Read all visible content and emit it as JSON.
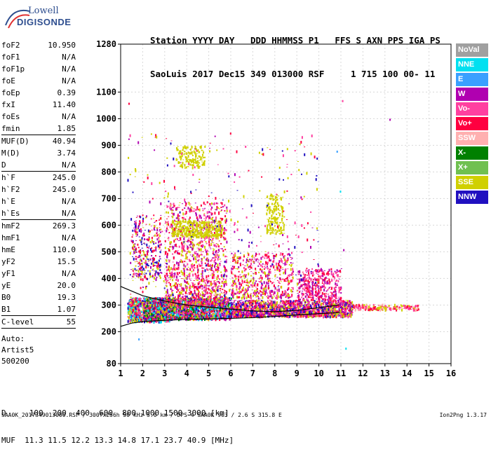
{
  "logo": {
    "line1": "Lowell",
    "line2": "DIGISONDE"
  },
  "header": {
    "line1": "Station YYYY DAY   DDD HHMMSS P1   FFS S AXN PPS IGA PS",
    "line2": "SaoLuis 2017 Dec15 349 013000 RSF     1 715 100 00- 11"
  },
  "params": [
    {
      "k": "foF2",
      "v": "10.950"
    },
    {
      "k": "foF1",
      "v": "N/A"
    },
    {
      "k": "foF1p",
      "v": "N/A"
    },
    {
      "k": "foE",
      "v": "N/A"
    },
    {
      "k": "foEp",
      "v": "0.39"
    },
    {
      "k": "fxI",
      "v": "11.40"
    },
    {
      "k": "foEs",
      "v": "N/A"
    },
    {
      "k": "fmin",
      "v": "1.85"
    },
    {
      "sep": true
    },
    {
      "k": "MUF(D)",
      "v": "40.94"
    },
    {
      "k": "M(D)",
      "v": "3.74"
    },
    {
      "k": "D",
      "v": "N/A"
    },
    {
      "sep": true
    },
    {
      "k": "h`F",
      "v": "245.0"
    },
    {
      "k": "h`F2",
      "v": "245.0"
    },
    {
      "k": "h`E",
      "v": "N/A"
    },
    {
      "k": "h`Es",
      "v": "N/A"
    },
    {
      "sep": true
    },
    {
      "k": "hmF2",
      "v": "269.3"
    },
    {
      "k": "hmF1",
      "v": "N/A"
    },
    {
      "k": "hmE",
      "v": "110.0"
    },
    {
      "k": "yF2",
      "v": "15.5"
    },
    {
      "k": "yF1",
      "v": "N/A"
    },
    {
      "k": "yE",
      "v": "20.0"
    },
    {
      "k": "B0",
      "v": "19.3"
    },
    {
      "k": "B1",
      "v": "1.07"
    },
    {
      "sep": true
    },
    {
      "k": "C-level",
      "v": "55"
    },
    {
      "sep": true
    }
  ],
  "auto": {
    "line1": "Auto:",
    "line2": "Artist5",
    "line3": "500200"
  },
  "footer": {
    "line1": "D     100  200  400  600  800 1000 1500 3000 [km]",
    "line2": "MUF  11.3 11.5 12.2 13.3 14.8 17.1 23.7 40.9 [MHz]",
    "line3": "SAA0K_2017349013000.RSF / 300fx256h 50 kHz 5.0 km / DPS-4 SAA0K 903 / 2.6 S 315.8 E",
    "version": "Ion2Png 1.3.17"
  },
  "legend": [
    {
      "label": "NoVal",
      "color": "#a0a0a0"
    },
    {
      "label": "NNE",
      "color": "#00e0f0"
    },
    {
      "label": "E",
      "color": "#3aa0ff"
    },
    {
      "label": "W",
      "color": "#b000b0"
    },
    {
      "label": "Vo-",
      "color": "#ff40a0"
    },
    {
      "label": "Vo+",
      "color": "#ff0040"
    },
    {
      "label": "SSW",
      "color": "#ffb0b0"
    },
    {
      "label": "X-",
      "color": "#008000"
    },
    {
      "label": "X+",
      "color": "#70c050"
    },
    {
      "label": "SSE",
      "color": "#d0d000"
    },
    {
      "label": "NNW",
      "color": "#2010c0"
    }
  ],
  "chart_data": {
    "type": "scatter",
    "title": "",
    "xlabel": "",
    "ylabel": "",
    "xlim": [
      1,
      16
    ],
    "ylim": [
      80,
      1280
    ],
    "x_ticks": [
      1,
      2,
      3,
      4,
      5,
      6,
      7,
      8,
      9,
      10,
      11,
      12,
      13,
      14,
      15,
      16
    ],
    "y_ticks": [
      80,
      200,
      300,
      400,
      500,
      600,
      700,
      800,
      900,
      1000,
      1100,
      1280
    ],
    "grid": true,
    "clusters": [
      {
        "x": [
          1.3,
          3.2
        ],
        "y": [
          240,
          330
        ],
        "n": 900,
        "colors": [
          "#ff0040",
          "#d0d000",
          "#ff40a0",
          "#2010c0",
          "#00e0f0"
        ]
      },
      {
        "x": [
          2.0,
          6.0
        ],
        "y": [
          250,
          330
        ],
        "n": 2200,
        "colors": [
          "#ff0040",
          "#ff40a0",
          "#d0d000",
          "#2010c0",
          "#b000b0",
          "#00e0f0",
          "#008000"
        ]
      },
      {
        "x": [
          6.0,
          11.5
        ],
        "y": [
          260,
          320
        ],
        "n": 1800,
        "colors": [
          "#ff0040",
          "#ff40a0",
          "#b000b0",
          "#2010c0",
          "#d0d000"
        ]
      },
      {
        "x": [
          11.5,
          14.5
        ],
        "y": [
          285,
          305
        ],
        "n": 220,
        "colors": [
          "#ff0040",
          "#ff40a0",
          "#d0d000",
          "#ffb0b0"
        ]
      },
      {
        "x": [
          3.0,
          5.8
        ],
        "y": [
          300,
          690
        ],
        "n": 1200,
        "colors": [
          "#ff0040",
          "#ff40a0",
          "#b000b0",
          "#d0d000"
        ]
      },
      {
        "x": [
          1.5,
          2.8
        ],
        "y": [
          400,
          640
        ],
        "n": 300,
        "colors": [
          "#d0d000",
          "#ff0040",
          "#b000b0",
          "#2010c0"
        ]
      },
      {
        "x": [
          3.3,
          5.6
        ],
        "y": [
          560,
          620
        ],
        "n": 400,
        "colors": [
          "#d0d000"
        ]
      },
      {
        "x": [
          3.5,
          4.8
        ],
        "y": [
          820,
          900
        ],
        "n": 150,
        "colors": [
          "#d0d000"
        ]
      },
      {
        "x": [
          6.0,
          8.8
        ],
        "y": [
          330,
          500
        ],
        "n": 500,
        "colors": [
          "#ff0040",
          "#ff40a0",
          "#b000b0",
          "#d0d000"
        ]
      },
      {
        "x": [
          7.6,
          8.4
        ],
        "y": [
          570,
          720
        ],
        "n": 180,
        "colors": [
          "#d0d000"
        ]
      },
      {
        "x": [
          9.0,
          11.0
        ],
        "y": [
          320,
          440
        ],
        "n": 400,
        "colors": [
          "#ff0040",
          "#ff40a0",
          "#b000b0"
        ]
      },
      {
        "x": [
          1.3,
          10.0
        ],
        "y": [
          300,
          950
        ],
        "n": 400,
        "colors": [
          "#ff0040",
          "#b000b0",
          "#2010c0",
          "#d0d000",
          "#ff40a0"
        ]
      }
    ],
    "points": [
      {
        "x": 1.35,
        "y": 1060,
        "color": "#ff0040"
      },
      {
        "x": 11.05,
        "y": 1070,
        "color": "#ff40a0"
      },
      {
        "x": 13.2,
        "y": 1000,
        "color": "#b000b0"
      },
      {
        "x": 10.8,
        "y": 880,
        "color": "#3aa0ff"
      },
      {
        "x": 10.95,
        "y": 730,
        "color": "#00e0f0"
      },
      {
        "x": 11.2,
        "y": 140,
        "color": "#00e0f0"
      },
      {
        "x": 11.1,
        "y": 510,
        "color": "#b000b0"
      },
      {
        "x": 1.8,
        "y": 175,
        "color": "#3aa0ff"
      }
    ],
    "curves": [
      {
        "x": [
          1,
          1.5,
          2,
          3,
          4,
          5,
          6,
          7,
          8,
          9,
          10,
          10.95
        ],
        "y": [
          220,
          232,
          238,
          243,
          246,
          248,
          250,
          253,
          257,
          263,
          268,
          272
        ],
        "color": "#000000"
      },
      {
        "x": [
          1,
          2,
          3,
          4,
          5,
          6,
          7,
          8,
          9,
          10,
          10.9
        ],
        "y": [
          370,
          335,
          315,
          300,
          292,
          285,
          278,
          275,
          280,
          290,
          300
        ],
        "color": "#000000"
      }
    ]
  }
}
